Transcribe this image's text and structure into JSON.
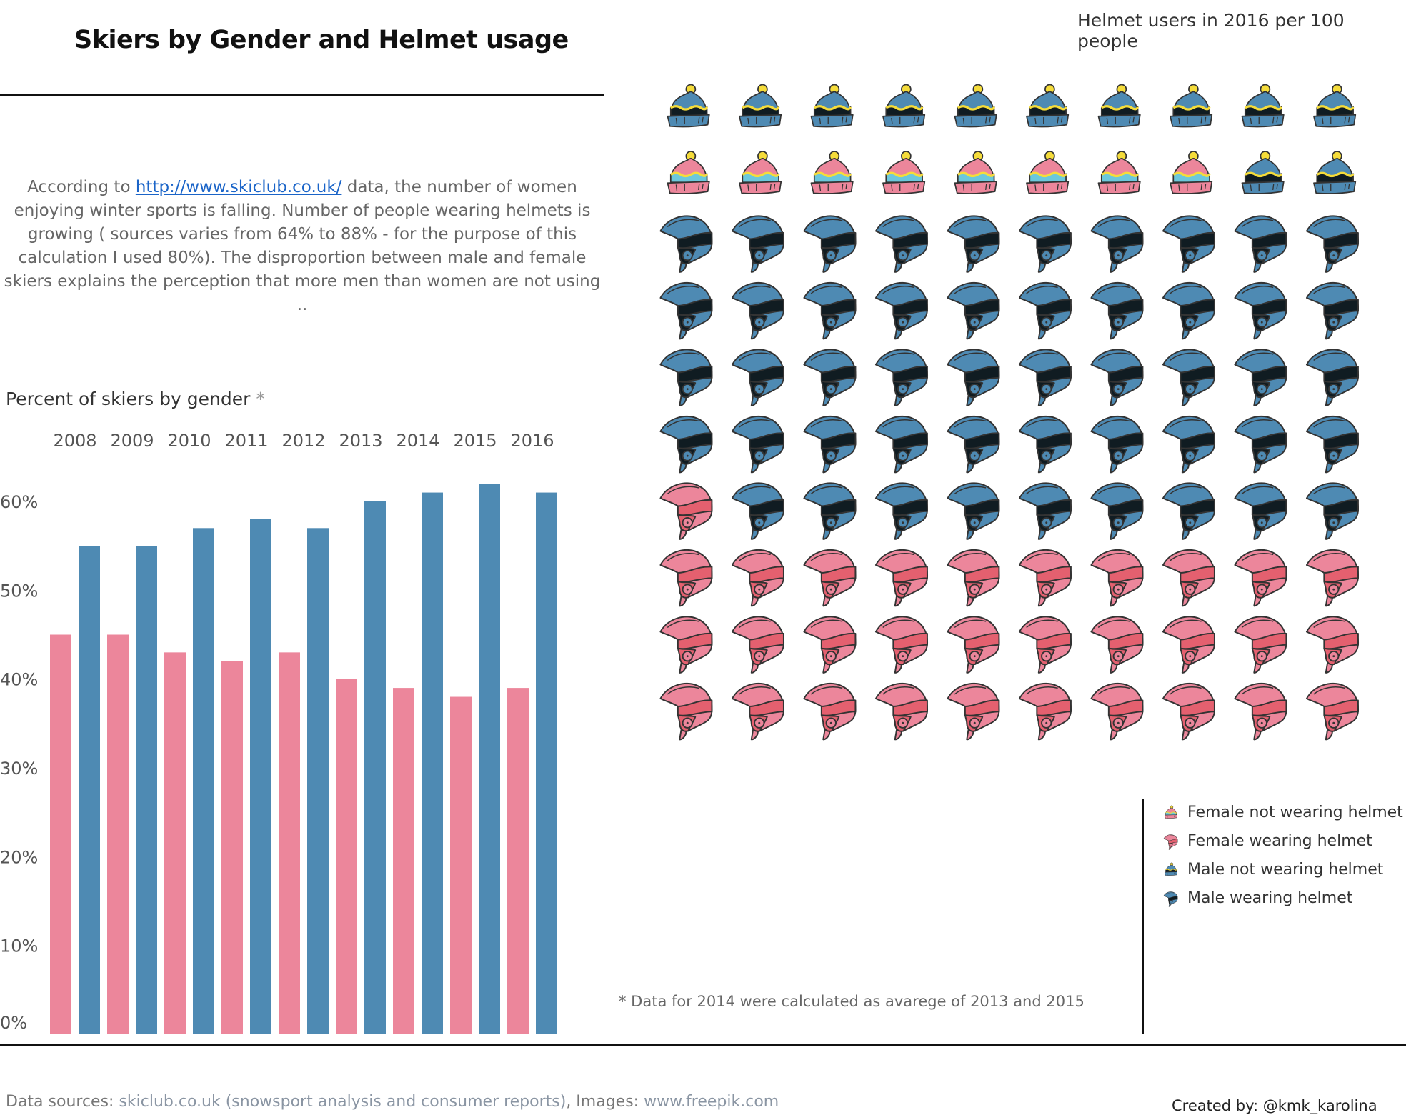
{
  "header": {
    "title": "Skiers by Gender and  Helmet usage",
    "icons_title": "Helmet users in 2016  per 100 people"
  },
  "intro": {
    "prefix": "According to ",
    "link": "http://www.skiclub.co.uk/",
    "rest_line1": "  data, the number of women",
    "line2": "enjoying winter sports is falling. Number of people wearing helmets is",
    "line3": "growing ( sources varies from 64% to 88%  - for the purpose of this",
    "line4": "calculation I used 80%). The disproportion between male and female",
    "line5": "skiers explains the perception that more men than women are not using .."
  },
  "colors": {
    "female": "#ec869b",
    "male": "#4e8ab3",
    "male_dark": "#101c22",
    "female_dark": "#e4606f",
    "hat_yellow": "#f5dc3a",
    "hat_cyan": "#6cc8dc"
  },
  "chart_data": [
    {
      "type": "bar",
      "title": "Percent of skiers by gender",
      "title_marker": "*",
      "categories": [
        "2008",
        "2009",
        "2010",
        "2011",
        "2012",
        "2013",
        "2014",
        "2015",
        "2016"
      ],
      "series": [
        {
          "name": "Female",
          "values": [
            45,
            45,
            43,
            42,
            43,
            40,
            39,
            38,
            39
          ]
        },
        {
          "name": "Male",
          "values": [
            55,
            55,
            57,
            58,
            57,
            60,
            61,
            62,
            61
          ]
        }
      ],
      "xlabel": "",
      "ylabel": "",
      "ylim": [
        0,
        62
      ],
      "yticks": [
        "0%",
        "10%",
        "20%",
        "30%",
        "40%",
        "50%",
        "60%"
      ],
      "ytick_values": [
        0,
        10,
        20,
        30,
        40,
        50,
        60
      ],
      "x_axis_position": "top",
      "grid": false
    },
    {
      "type": "pictogram",
      "title": "Helmet users in 2016  per 100 people",
      "rows": 10,
      "cols": 10,
      "sequence": [
        {
          "category": "Male not wearing helmet",
          "count": 10
        },
        {
          "category": "Female not wearing helmet",
          "count": 8
        },
        {
          "category": "Male not wearing helmet",
          "count": 2
        },
        {
          "category": "Male wearing helmet",
          "count": 40
        },
        {
          "category": "Female wearing helmet",
          "count": 1
        },
        {
          "category": "Male wearing helmet",
          "count": 9
        },
        {
          "category": "Female wearing helmet",
          "count": 30
        }
      ],
      "totals": {
        "Female not wearing helmet": 8,
        "Female wearing helmet": 31,
        "Male not wearing helmet": 12,
        "Male wearing helmet": 49
      }
    }
  ],
  "legend": [
    {
      "label": "Female not wearing helmet",
      "icon": "female-hat-icon"
    },
    {
      "label": "Female wearing helmet",
      "icon": "female-helmet-icon"
    },
    {
      "label": "Male not wearing helmet",
      "icon": "male-hat-icon"
    },
    {
      "label": "Male wearing helmet",
      "icon": "male-helmet-icon"
    }
  ],
  "footnote": "* Data for 2014 were calculated as avarege of 2013 and 2015",
  "footer": {
    "sources_label": "Data sources: ",
    "sources_text": "skiclub.co.uk (snowsport analysis and consumer reports)",
    "images_label": ",  Images:  ",
    "images_text": "www.freepik.com",
    "credit": "Created by: @kmk_karolina"
  }
}
